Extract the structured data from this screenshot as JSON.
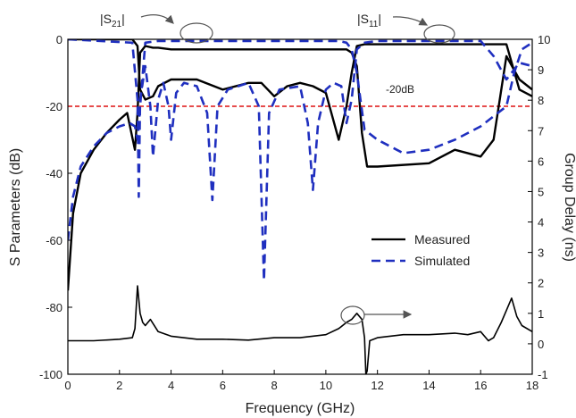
{
  "chart_data": {
    "type": "line",
    "xlabel": "Frequency (GHz)",
    "ylabel_left": "S Parameters (dB)",
    "ylabel_right": "Group Delay (ns)",
    "xlim": [
      0,
      18
    ],
    "ylim_left": [
      -100,
      0
    ],
    "ylim_right": [
      -1,
      10
    ],
    "x_ticks": [
      "0",
      "2",
      "4",
      "6",
      "8",
      "10",
      "12",
      "14",
      "16",
      "18"
    ],
    "y_left_ticks": [
      "0",
      "-20",
      "-40",
      "-60",
      "-80",
      "-100"
    ],
    "y_right_ticks": [
      "10",
      "9",
      "8",
      "7",
      "6",
      "5",
      "4",
      "3",
      "2",
      "1",
      "0",
      "-1"
    ],
    "grid": false,
    "legend_position": "center-right",
    "legend": [
      {
        "label": "Measured",
        "style": "solid",
        "color": "#000000"
      },
      {
        "label": "Simulated",
        "style": "dashed",
        "color": "#1f2fbf"
      }
    ],
    "annotations": {
      "s21_label": "|S21|",
      "s11_label": "|S11|",
      "threshold_label": "-20dB",
      "threshold_value": -20,
      "threshold_color": "#dd1111"
    },
    "series": [
      {
        "name": "Measured",
        "quantity": "|S21|",
        "axis": "left",
        "x": [
          0,
          0.2,
          0.5,
          1,
          1.5,
          2,
          2.3,
          2.6,
          2.7,
          2.8,
          3,
          3.3,
          3.5,
          4,
          5,
          6,
          7,
          8,
          9,
          10,
          10.5,
          10.8,
          11,
          11.2,
          11.4,
          11.6,
          12,
          14,
          15,
          16,
          16.5,
          17,
          17.5,
          18
        ],
        "y": [
          -75,
          -52,
          -40,
          -33,
          -28,
          -24,
          -22,
          -33,
          -22,
          -4,
          -2,
          -2.5,
          -2.5,
          -3,
          -3,
          -3,
          -3,
          -3,
          -3,
          -3,
          -3,
          -3,
          -4,
          -8,
          -28,
          -38,
          -38,
          -37,
          -33,
          -35,
          -30,
          -5,
          -12,
          -15
        ]
      },
      {
        "name": "Measured",
        "quantity": "|S11|",
        "axis": "left",
        "x": [
          0,
          2,
          2.5,
          2.7,
          2.8,
          3,
          3.3,
          3.5,
          4,
          5,
          6,
          7,
          7.5,
          8,
          8.5,
          9,
          9.5,
          10,
          10.5,
          10.8,
          11,
          11.2,
          11.5,
          12,
          13,
          14,
          15,
          16,
          17,
          17.5,
          18
        ],
        "y": [
          0,
          0,
          0,
          -2,
          -15,
          -18,
          -17,
          -14,
          -12,
          -12,
          -15,
          -13,
          -13,
          -17,
          -14,
          -13,
          -14,
          -16,
          -30,
          -20,
          -10,
          -2,
          -1.5,
          -1.5,
          -1.5,
          -1.5,
          -1.5,
          -1.5,
          -1.5,
          -15,
          -17
        ]
      },
      {
        "name": "Simulated",
        "quantity": "|S21|",
        "axis": "left",
        "x": [
          0,
          0.2,
          0.5,
          1,
          1.5,
          2,
          2.4,
          2.6,
          2.7,
          2.8,
          3,
          3.5,
          4,
          6,
          8,
          10,
          10.5,
          10.8,
          11,
          11.2,
          11.5,
          12,
          13,
          14,
          15,
          16,
          17,
          17.3,
          17.6,
          18
        ],
        "y": [
          -60,
          -47,
          -38,
          -32,
          -28,
          -26,
          -25,
          -26,
          -30,
          -20,
          -1,
          -0.5,
          -0.5,
          -0.5,
          -0.5,
          -0.5,
          -0.5,
          -1,
          -3,
          -10,
          -27,
          -30,
          -34,
          -33,
          -30,
          -26,
          -20,
          -10,
          -3,
          -1
        ]
      },
      {
        "name": "Simulated",
        "quantity": "|S11|",
        "axis": "left",
        "x": [
          0,
          2.5,
          2.7,
          2.75,
          2.8,
          3,
          3.2,
          3.3,
          3.5,
          3.7,
          3.9,
          4.0,
          4.2,
          4.5,
          5,
          5.4,
          5.6,
          5.8,
          6.2,
          7,
          7.4,
          7.6,
          7.8,
          8.2,
          9,
          9.3,
          9.5,
          9.7,
          10,
          10.3,
          10.6,
          10.8,
          11,
          11.2,
          11.5,
          12,
          14,
          16,
          16.5,
          17,
          17.5,
          18
        ],
        "y": [
          0,
          -1,
          -18,
          -47,
          -18,
          -8,
          -20,
          -35,
          -18,
          -13,
          -20,
          -30,
          -16,
          -13,
          -14,
          -22,
          -48,
          -20,
          -15,
          -13,
          -20,
          -72,
          -22,
          -15,
          -14,
          -25,
          -45,
          -25,
          -15,
          -13,
          -14,
          -25,
          -18,
          -3,
          -1,
          -0.5,
          -0.5,
          -0.5,
          -5,
          -12,
          -7,
          -8
        ]
      },
      {
        "name": "Measured",
        "quantity": "Group Delay",
        "axis": "right",
        "x": [
          0,
          1,
          2,
          2.5,
          2.6,
          2.7,
          2.8,
          2.9,
          3.0,
          3.2,
          3.5,
          4,
          5,
          6,
          7,
          8,
          9,
          10,
          10.5,
          10.8,
          11,
          11.2,
          11.4,
          11.5,
          11.55,
          11.6,
          11.7,
          12,
          13,
          14,
          15,
          15.5,
          16,
          16.3,
          16.5,
          16.8,
          17,
          17.2,
          17.4,
          17.6,
          18
        ],
        "y": [
          0.1,
          0.1,
          0.15,
          0.2,
          0.5,
          1.9,
          1.0,
          0.7,
          0.6,
          0.8,
          0.4,
          0.25,
          0.15,
          0.15,
          0.12,
          0.2,
          0.2,
          0.3,
          0.5,
          0.7,
          0.8,
          1.0,
          0.8,
          0.2,
          -1.0,
          -0.9,
          0.1,
          0.2,
          0.3,
          0.3,
          0.35,
          0.3,
          0.4,
          0.1,
          0.2,
          0.7,
          1.1,
          1.5,
          0.9,
          0.6,
          0.4
        ]
      }
    ]
  }
}
